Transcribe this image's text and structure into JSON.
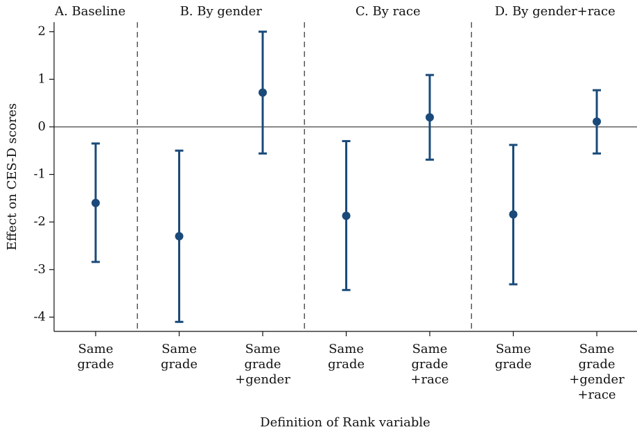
{
  "chart_data": {
    "type": "errorbar",
    "xlabel": "Definition of Rank variable",
    "ylabel": "Effect on CES-D scores",
    "color": "#1a4a7a",
    "ylim": [
      -4.3,
      2.2
    ],
    "yticks": [
      -4,
      -3,
      -2,
      -1,
      0,
      1,
      2
    ],
    "reference_line": 0,
    "panels": [
      {
        "title": "A. Baseline",
        "categories": [
          [
            "Same",
            "grade"
          ]
        ],
        "values": [
          -1.6
        ],
        "lower": [
          -2.84
        ],
        "upper": [
          -0.35
        ]
      },
      {
        "title": "B. By gender",
        "categories": [
          [
            "Same",
            "grade"
          ],
          [
            "Same",
            "grade",
            "+gender"
          ]
        ],
        "values": [
          -2.3,
          0.72
        ],
        "lower": [
          -4.1,
          -0.56
        ],
        "upper": [
          -0.5,
          2.0
        ]
      },
      {
        "title": "C. By race",
        "categories": [
          [
            "Same",
            "grade"
          ],
          [
            "Same",
            "grade",
            "+race"
          ]
        ],
        "values": [
          -1.87,
          0.2
        ],
        "lower": [
          -3.43,
          -0.69
        ],
        "upper": [
          -0.3,
          1.09
        ]
      },
      {
        "title": "D. By gender+race",
        "categories": [
          [
            "Same",
            "grade"
          ],
          [
            "Same",
            "grade",
            "+gender",
            "+race"
          ]
        ],
        "values": [
          -1.84,
          0.11
        ],
        "lower": [
          -3.31,
          -0.56
        ],
        "upper": [
          -0.38,
          0.77
        ]
      }
    ]
  }
}
